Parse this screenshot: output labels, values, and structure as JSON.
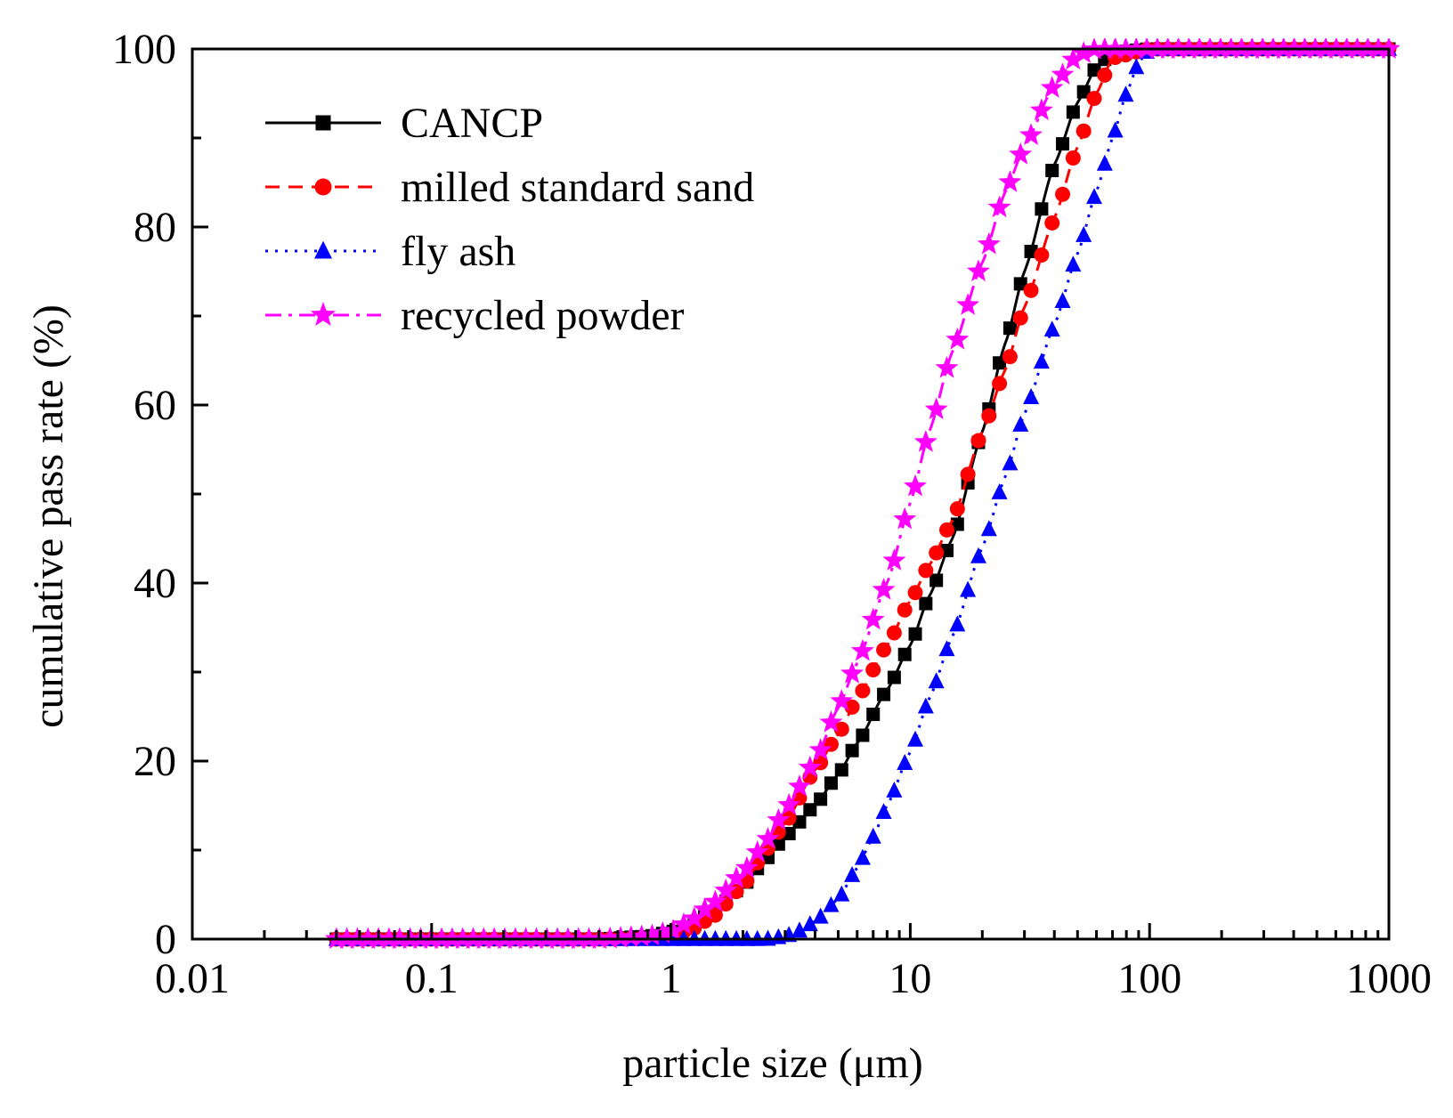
{
  "chart_data": {
    "type": "line",
    "xscale": "log",
    "xlabel": "particle size (μm)",
    "ylabel": "cumulative pass rate (%)",
    "xlim": [
      0.01,
      1000
    ],
    "ylim": [
      0,
      100
    ],
    "x_ticks": [
      0.01,
      0.1,
      1,
      10,
      100,
      1000
    ],
    "x_tick_labels": [
      "0.01",
      "0.1",
      "1",
      "10",
      "100",
      "1000"
    ],
    "y_ticks": [
      0,
      20,
      40,
      60,
      80,
      100
    ],
    "y_tick_labels": [
      "0",
      "20",
      "40",
      "60",
      "80",
      "100"
    ],
    "legend_position": "top-left",
    "x_range_of_data": [
      0.04,
      1000
    ],
    "series": [
      {
        "name": "CANCP",
        "color": "#000000",
        "line_style": "solid",
        "marker": "square",
        "x": [
          0.04,
          0.5,
          0.8,
          1,
          1.2,
          1.5,
          2,
          2.5,
          3,
          4,
          5,
          6,
          8,
          10,
          12,
          15,
          20,
          25,
          30,
          40,
          50,
          60,
          70,
          100,
          1000
        ],
        "y": [
          0,
          0,
          0.3,
          0.8,
          1.5,
          3,
          6,
          9,
          11.5,
          15,
          18.5,
          22,
          28,
          33,
          38.5,
          45,
          57,
          67,
          75,
          87,
          94,
          98,
          99.6,
          100,
          100
        ]
      },
      {
        "name": "milled standard sand",
        "color": "#ff0000",
        "line_style": "dashed",
        "marker": "circle",
        "x": [
          0.04,
          0.5,
          0.8,
          1,
          1.2,
          1.5,
          2,
          2.5,
          3,
          4,
          5,
          6,
          8,
          10,
          12,
          15,
          20,
          25,
          30,
          40,
          50,
          60,
          70,
          100,
          1000
        ],
        "y": [
          0,
          0,
          0.1,
          0.4,
          1,
          2.5,
          6,
          10,
          13,
          19,
          23,
          27,
          33,
          38,
          42,
          47,
          57,
          64,
          71,
          81,
          89,
          95,
          99,
          100,
          100
        ]
      },
      {
        "name": "fly ash",
        "color": "#0000ff",
        "line_style": "dotted",
        "marker": "triangle",
        "x": [
          0.04,
          1,
          2,
          2.5,
          3,
          3.5,
          4,
          5,
          6,
          7,
          8,
          10,
          12,
          15,
          20,
          25,
          30,
          40,
          50,
          60,
          70,
          80,
          90,
          100,
          1000
        ],
        "y": [
          0,
          0,
          0,
          0,
          0.3,
          1,
          2,
          4.5,
          8,
          11.5,
          15,
          21,
          27,
          34,
          44,
          52,
          59,
          69,
          77,
          84,
          90,
          95,
          98.5,
          100,
          100
        ]
      },
      {
        "name": "recycled powder",
        "color": "#ff00ff",
        "line_style": "dash-dot",
        "marker": "star",
        "x": [
          0.04,
          0.5,
          0.8,
          1,
          1.2,
          1.5,
          2,
          2.5,
          3,
          4,
          5,
          6,
          8,
          10,
          12,
          15,
          20,
          25,
          30,
          40,
          50,
          60,
          100,
          1000
        ],
        "y": [
          0,
          0,
          0.3,
          0.8,
          2,
          4,
          7.5,
          11,
          14.5,
          20,
          26,
          31,
          40,
          49,
          57,
          66,
          76,
          84,
          89,
          96,
          99.3,
          100,
          100,
          100
        ]
      }
    ]
  }
}
